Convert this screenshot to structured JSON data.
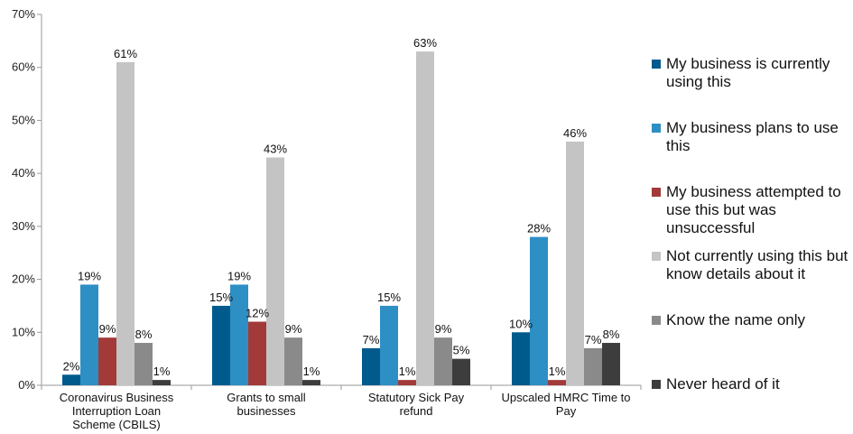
{
  "chart_data": {
    "type": "bar",
    "categories": [
      "Coronavirus Business Interruption Loan Scheme (CBILS)",
      "Grants to small businesses",
      "Statutory Sick Pay refund",
      "Upscaled HMRC Time to Pay"
    ],
    "series": [
      {
        "name": "My business is currently using this",
        "color": "#005b8c",
        "values": [
          2,
          15,
          7,
          10
        ]
      },
      {
        "name": "My business plans to use this",
        "color": "#2e8fc5",
        "values": [
          19,
          19,
          15,
          28
        ]
      },
      {
        "name": "My business attempted to use this but was unsuccessful",
        "color": "#a33a3a",
        "values": [
          9,
          12,
          1,
          1
        ]
      },
      {
        "name": "Not currently using this but know details about it",
        "color": "#c4c4c4",
        "values": [
          61,
          43,
          63,
          46
        ]
      },
      {
        "name": "Know the name only",
        "color": "#8a8a8a",
        "values": [
          8,
          9,
          9,
          7
        ]
      },
      {
        "name": "Never heard of it",
        "color": "#3d3d3d",
        "values": [
          1,
          1,
          5,
          8
        ]
      }
    ],
    "yticks": [
      "0%",
      "10%",
      "20%",
      "30%",
      "40%",
      "50%",
      "60%",
      "70%"
    ],
    "ylim": [
      0,
      70
    ],
    "value_suffix": "%",
    "title": "",
    "xlabel": "",
    "ylabel": "",
    "legend_position": "right",
    "grid": false
  }
}
